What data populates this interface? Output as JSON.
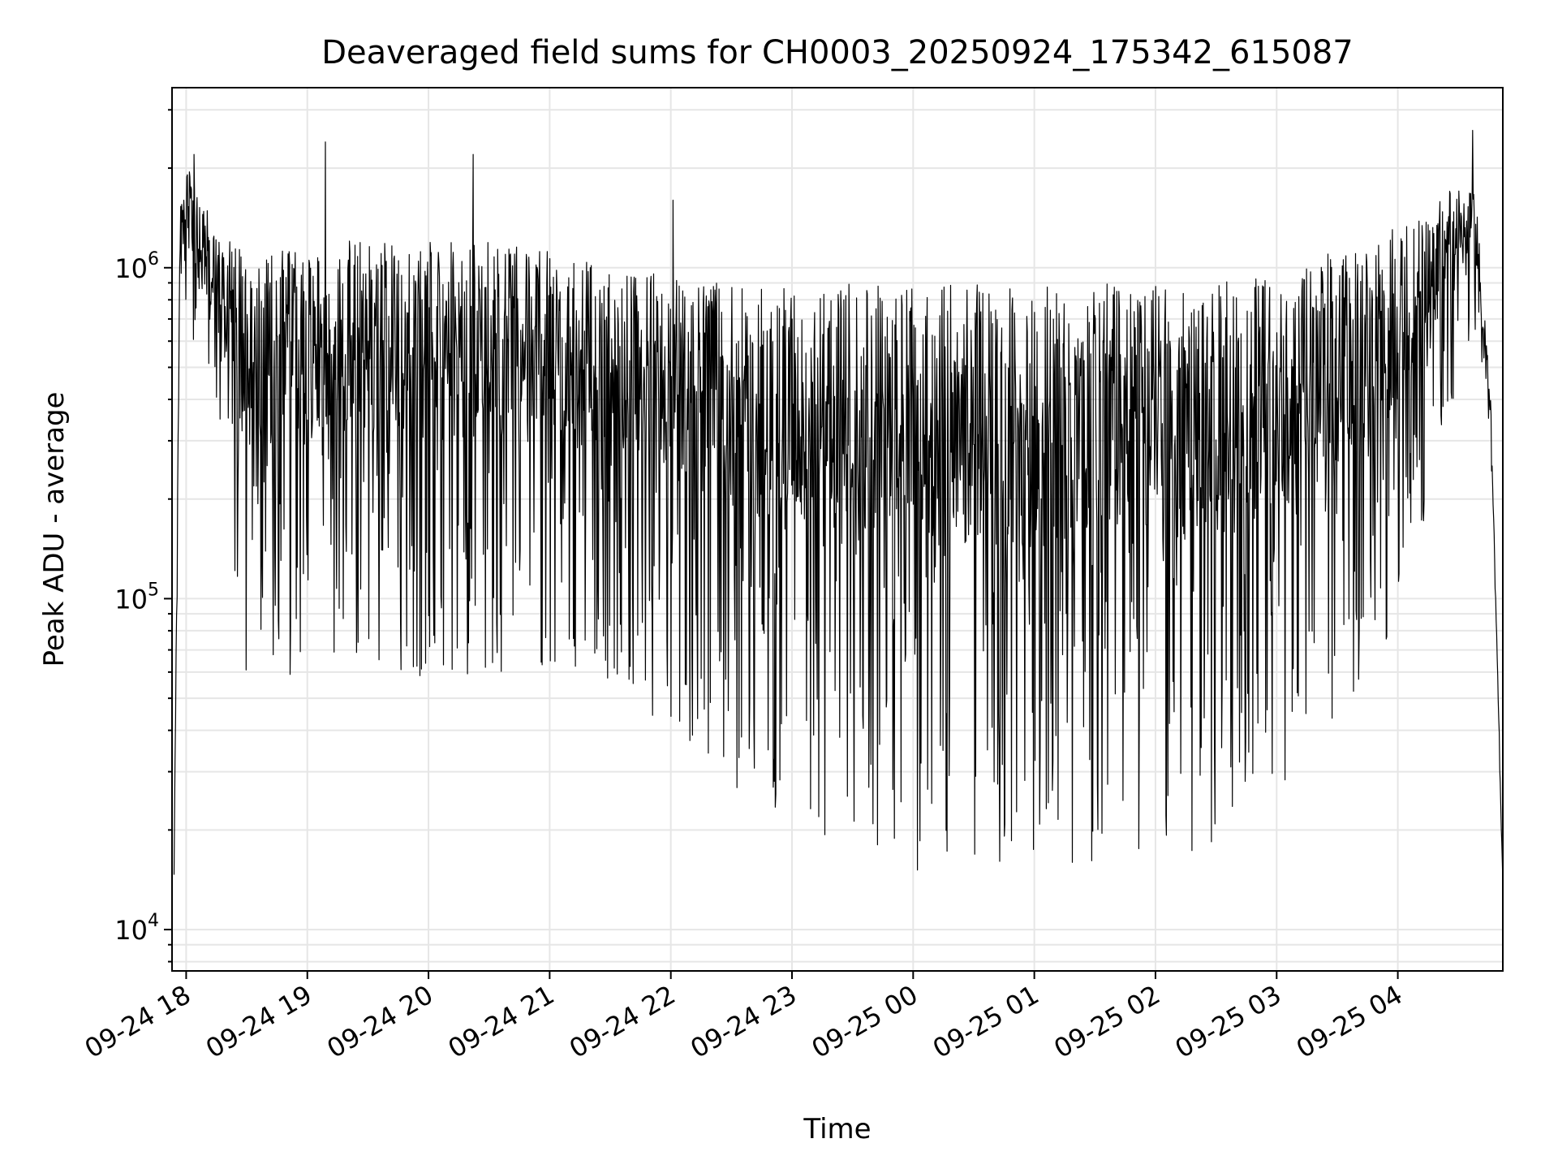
{
  "chart_data": {
    "type": "line",
    "title": "Deaveraged field sums for CH0003_20250924_175342_615087",
    "xlabel": "Time",
    "ylabel": "Peak ADU - average",
    "yscale": "log",
    "grid": true,
    "legend": "none",
    "x_range": [
      "2025-09-24 17:53",
      "2025-09-25 04:52"
    ],
    "ylim": [
      7500,
      3500000
    ],
    "x_ticks": [
      {
        "value": "2025-09-24 18:00",
        "label": "09-24 18"
      },
      {
        "value": "2025-09-24 19:00",
        "label": "09-24 19"
      },
      {
        "value": "2025-09-24 20:00",
        "label": "09-24 20"
      },
      {
        "value": "2025-09-24 21:00",
        "label": "09-24 21"
      },
      {
        "value": "2025-09-24 22:00",
        "label": "09-24 22"
      },
      {
        "value": "2025-09-24 23:00",
        "label": "09-24 23"
      },
      {
        "value": "2025-09-25 00:00",
        "label": "09-25 00"
      },
      {
        "value": "2025-09-25 01:00",
        "label": "09-25 01"
      },
      {
        "value": "2025-09-25 02:00",
        "label": "09-25 02"
      },
      {
        "value": "2025-09-25 03:00",
        "label": "09-25 03"
      },
      {
        "value": "2025-09-25 04:00",
        "label": "09-25 04"
      }
    ],
    "y_ticks": [
      {
        "value": 10000,
        "base": "10",
        "exp": "4"
      },
      {
        "value": 100000,
        "base": "10",
        "exp": "5"
      },
      {
        "value": 1000000,
        "base": "10",
        "exp": "6"
      }
    ],
    "series": [
      {
        "color": "#000000",
        "envelope": [
          {
            "x": "2025-09-24 17:54",
            "upper": 15000,
            "lower": 13000
          },
          {
            "x": "2025-09-24 17:57",
            "upper": 1500000,
            "lower": 600000
          },
          {
            "x": "2025-09-24 18:00",
            "upper": 2100000,
            "lower": 700000
          },
          {
            "x": "2025-09-24 18:15",
            "upper": 1300000,
            "lower": 250000
          },
          {
            "x": "2025-09-24 18:30",
            "upper": 1100000,
            "lower": 50000
          },
          {
            "x": "2025-09-24 19:00",
            "upper": 1150000,
            "lower": 60000
          },
          {
            "x": "2025-09-24 19:30",
            "upper": 1250000,
            "lower": 60000
          },
          {
            "x": "2025-09-24 20:00",
            "upper": 1200000,
            "lower": 55000
          },
          {
            "x": "2025-09-24 20:30",
            "upper": 1200000,
            "lower": 60000
          },
          {
            "x": "2025-09-24 21:00",
            "upper": 1150000,
            "lower": 60000
          },
          {
            "x": "2025-09-24 21:30",
            "upper": 1000000,
            "lower": 55000
          },
          {
            "x": "2025-09-24 22:00",
            "upper": 950000,
            "lower": 40000
          },
          {
            "x": "2025-09-24 22:30",
            "upper": 900000,
            "lower": 27000
          },
          {
            "x": "2025-09-24 23:00",
            "upper": 880000,
            "lower": 22000
          },
          {
            "x": "2025-09-24 23:30",
            "upper": 900000,
            "lower": 17000
          },
          {
            "x": "2025-09-25 00:00",
            "upper": 900000,
            "lower": 15000
          },
          {
            "x": "2025-09-25 00:30",
            "upper": 900000,
            "lower": 16000
          },
          {
            "x": "2025-09-25 01:00",
            "upper": 900000,
            "lower": 15000
          },
          {
            "x": "2025-09-25 01:30",
            "upper": 900000,
            "lower": 16000
          },
          {
            "x": "2025-09-25 02:00",
            "upper": 880000,
            "lower": 15000
          },
          {
            "x": "2025-09-25 02:30",
            "upper": 900000,
            "lower": 18000
          },
          {
            "x": "2025-09-25 03:00",
            "upper": 950000,
            "lower": 25000
          },
          {
            "x": "2025-09-25 03:30",
            "upper": 1150000,
            "lower": 40000
          },
          {
            "x": "2025-09-25 04:00",
            "upper": 1350000,
            "lower": 80000
          },
          {
            "x": "2025-09-25 04:20",
            "upper": 1600000,
            "lower": 250000
          },
          {
            "x": "2025-09-25 04:38",
            "upper": 2000000,
            "lower": 600000
          },
          {
            "x": "2025-09-25 04:46",
            "upper": 400000,
            "lower": 300000
          },
          {
            "x": "2025-09-25 04:52",
            "upper": 15000,
            "lower": 12000
          }
        ],
        "peaks": [
          {
            "x": "2025-09-24 18:04",
            "y": 2200000
          },
          {
            "x": "2025-09-24 19:09",
            "y": 2400000
          },
          {
            "x": "2025-09-24 20:22",
            "y": 2200000
          },
          {
            "x": "2025-09-24 22:01",
            "y": 1600000
          },
          {
            "x": "2025-09-25 04:37",
            "y": 2600000
          }
        ]
      }
    ]
  }
}
